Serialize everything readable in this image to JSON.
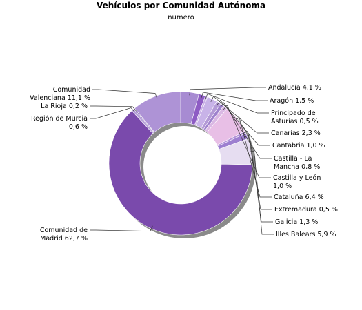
{
  "chart_data": {
    "type": "pie",
    "style": "donut",
    "title": "Vehículos por Comunidad Autónoma",
    "subtitle": "numero",
    "slices": [
      {
        "name": "Andalucía",
        "value": 4.1,
        "color": "#a78bd2",
        "label_lines": [
          "Andalucía 4,1 %"
        ]
      },
      {
        "name": "Aragón",
        "value": 1.5,
        "color": "#8e5cc4",
        "label_lines": [
          "Aragón 1,5 %"
        ]
      },
      {
        "name": "Principado de Asturias",
        "value": 0.5,
        "color": "#c9b1e6",
        "label_lines": [
          "Principado de",
          "Asturias 0,5 %"
        ]
      },
      {
        "name": "Canarias",
        "value": 2.3,
        "color": "#c8b3e8",
        "label_lines": [
          "Canarias 2,3 %"
        ]
      },
      {
        "name": "Cantabria",
        "value": 1.0,
        "color": "#b39ad6",
        "label_lines": [
          "Cantabria 1,0 %"
        ]
      },
      {
        "name": "Castilla - La Mancha",
        "value": 0.8,
        "color": "#9f82cd",
        "label_lines": [
          "Castilla - La",
          "Mancha 0,8 %"
        ]
      },
      {
        "name": "Castilla y León",
        "value": 1.0,
        "color": "#dab8e4",
        "label_lines": [
          "Castilla y León",
          "1,0 %"
        ]
      },
      {
        "name": "Cataluña",
        "value": 6.4,
        "color": "#e8bfe6",
        "label_lines": [
          "Cataluña 6,4 %"
        ]
      },
      {
        "name": "Extremadura",
        "value": 0.5,
        "color": "#b393d8",
        "label_lines": [
          "Extremadura 0,5 %"
        ]
      },
      {
        "name": "Galicia",
        "value": 1.3,
        "color": "#9d7fd0",
        "label_lines": [
          "Galicia 1,3 %"
        ]
      },
      {
        "name": "Illes Balears",
        "value": 5.9,
        "color": "#e6ddf1",
        "label_lines": [
          "Illes Balears 5,9 %"
        ]
      },
      {
        "name": "Comunidad de Madrid",
        "value": 62.7,
        "color": "#7a4aac",
        "label_lines": [
          "Comunidad de",
          "Madrid 62,7 %"
        ]
      },
      {
        "name": "Región de Murcia",
        "value": 0.6,
        "color": "#b7a1d9",
        "label_lines": [
          "Región de Murcia",
          "0,6 %"
        ]
      },
      {
        "name": "La Rioja",
        "value": 0.2,
        "color": "#6f4aa0",
        "label_lines": [
          "La Rioja 0,2 %"
        ]
      },
      {
        "name": "Comunidad Valenciana",
        "value": 11.1,
        "color": "#ae93d6",
        "label_lines": [
          "Comunidad",
          "Valenciana 11,1 %"
        ]
      }
    ]
  }
}
